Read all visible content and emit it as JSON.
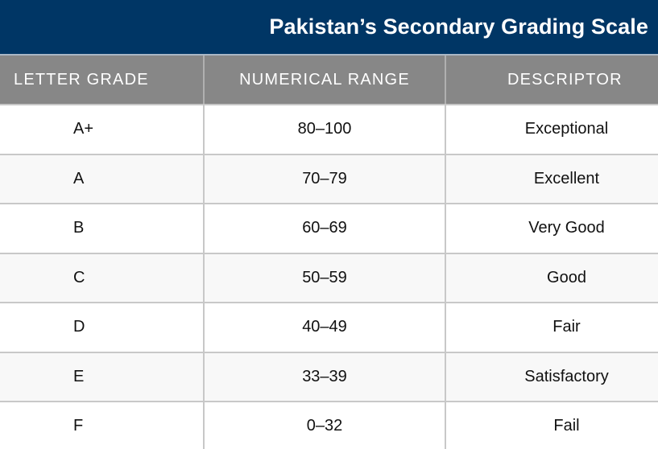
{
  "title": "Pakistan’s Secondary Grading Scale",
  "colors": {
    "title_bar_bg": "#003665",
    "header_bg": "#878787",
    "header_text": "#ffffff",
    "row_alt_bg": "#f8f8f8",
    "border": "#c8c8c8"
  },
  "table": {
    "headers": [
      "LETTER GRADE",
      "NUMERICAL RANGE",
      "DESCRIPTOR"
    ],
    "rows": [
      {
        "grade": "A+",
        "range": "80–100",
        "descriptor": "Exceptional"
      },
      {
        "grade": "A",
        "range": "70–79",
        "descriptor": "Excellent"
      },
      {
        "grade": "B",
        "range": "60–69",
        "descriptor": "Very Good"
      },
      {
        "grade": "C",
        "range": "50–59",
        "descriptor": "Good"
      },
      {
        "grade": "D",
        "range": "40–49",
        "descriptor": "Fair"
      },
      {
        "grade": "E",
        "range": "33–39",
        "descriptor": "Satisfactory"
      },
      {
        "grade": "F",
        "range": "0–32",
        "descriptor": "Fail"
      }
    ]
  }
}
